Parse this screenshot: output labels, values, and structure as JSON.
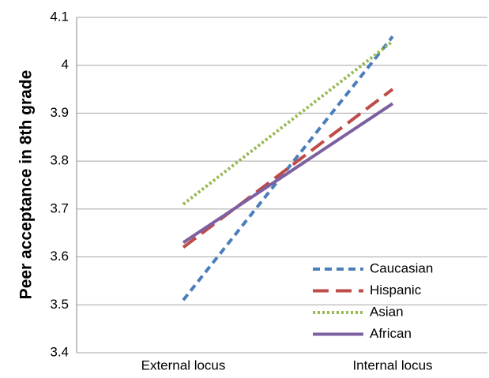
{
  "chart_data": {
    "type": "line",
    "y_label": "Peer acceptance in 8th grade",
    "categories": [
      "External locus",
      "Internal locus"
    ],
    "series": [
      {
        "name": "Caucasian",
        "color": "#4a7ebb",
        "style": "dashed",
        "values": [
          3.51,
          4.06
        ]
      },
      {
        "name": "Hispanic",
        "color": "#be4b48",
        "style": "long-dashed",
        "values": [
          3.62,
          3.95
        ]
      },
      {
        "name": "Asian",
        "color": "#98b954",
        "style": "dotted",
        "values": [
          3.71,
          4.05
        ]
      },
      {
        "name": "African",
        "color": "#7d60a0",
        "style": "solid",
        "values": [
          3.63,
          3.92
        ]
      }
    ],
    "ylim": [
      3.4,
      4.1
    ],
    "yticks": [
      3.4,
      3.5,
      3.6,
      3.7,
      3.8,
      3.9,
      4,
      4.1
    ],
    "grid": true,
    "legend": "lower right"
  }
}
